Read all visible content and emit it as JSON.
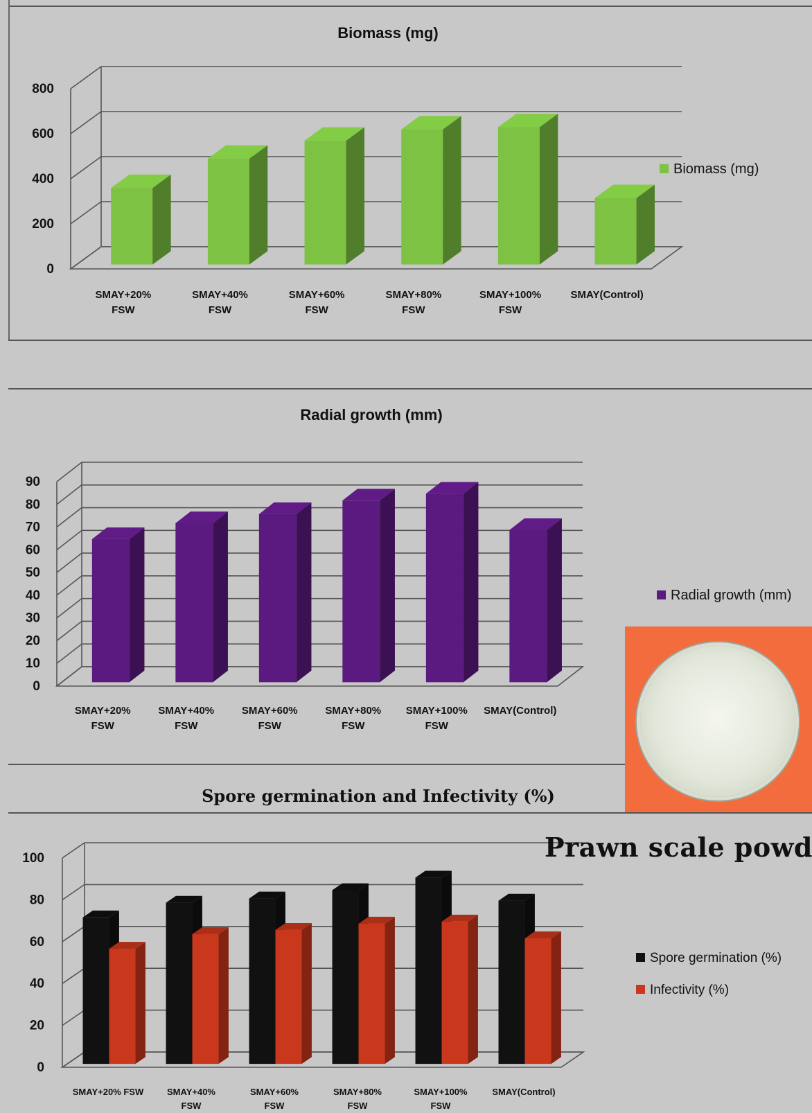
{
  "chart_data": [
    {
      "type": "bar",
      "title": "Biomass (mg)",
      "categories": [
        [
          "SMAY+20%",
          "FSW"
        ],
        [
          "SMAY+40%",
          "FSW"
        ],
        [
          "SMAY+60%",
          "FSW"
        ],
        [
          "SMAY+80%",
          "FSW"
        ],
        [
          "SMAY+100%",
          "FSW"
        ],
        [
          "SMAY(Control)"
        ]
      ],
      "ylim": [
        0,
        800
      ],
      "yticks": [
        0,
        200,
        400,
        600,
        800
      ],
      "series": [
        {
          "name": "Biomass (mg)",
          "color": "#7dc242",
          "values": [
            340,
            470,
            550,
            600,
            610,
            295
          ]
        }
      ],
      "legend_position": "right",
      "grid": true
    },
    {
      "type": "bar",
      "title": "Radial growth (mm)",
      "categories": [
        [
          "SMAY+20%",
          "FSW"
        ],
        [
          "SMAY+40%",
          "FSW"
        ],
        [
          "SMAY+60%",
          "FSW"
        ],
        [
          "SMAY+80%",
          "FSW"
        ],
        [
          "SMAY+100%",
          "FSW"
        ],
        [
          "SMAY(Control)"
        ]
      ],
      "ylim": [
        0,
        90
      ],
      "yticks": [
        0,
        10,
        20,
        30,
        40,
        50,
        60,
        70,
        80,
        90
      ],
      "series": [
        {
          "name": "Radial growth (mm)",
          "color": "#5b1a80",
          "values": [
            63,
            70,
            74,
            80,
            83,
            67
          ]
        }
      ],
      "legend_position": "right",
      "grid": true
    },
    {
      "type": "bar",
      "title": "Spore germination and Infectivity (%)",
      "categories": [
        [
          "SMAY+20% FSW"
        ],
        [
          "SMAY+40%",
          "FSW"
        ],
        [
          "SMAY+60%",
          "FSW"
        ],
        [
          "SMAY+80%",
          "FSW"
        ],
        [
          "SMAY+100%",
          "FSW"
        ],
        [
          "SMAY(Control)"
        ]
      ],
      "ylim": [
        0,
        100
      ],
      "yticks": [
        0,
        20,
        40,
        60,
        80,
        100
      ],
      "series": [
        {
          "name": "Spore germination (%)",
          "color": "#111111",
          "values": [
            70,
            77,
            79,
            83,
            89,
            78
          ]
        },
        {
          "name": "Infectivity (%)",
          "color": "#c9371c",
          "values": [
            55,
            62,
            64,
            67,
            68,
            60
          ]
        }
      ],
      "legend_position": "right",
      "grid": true
    }
  ],
  "photo": {
    "caption": "Prawn scale powder",
    "background_color": "#f36c3d"
  }
}
